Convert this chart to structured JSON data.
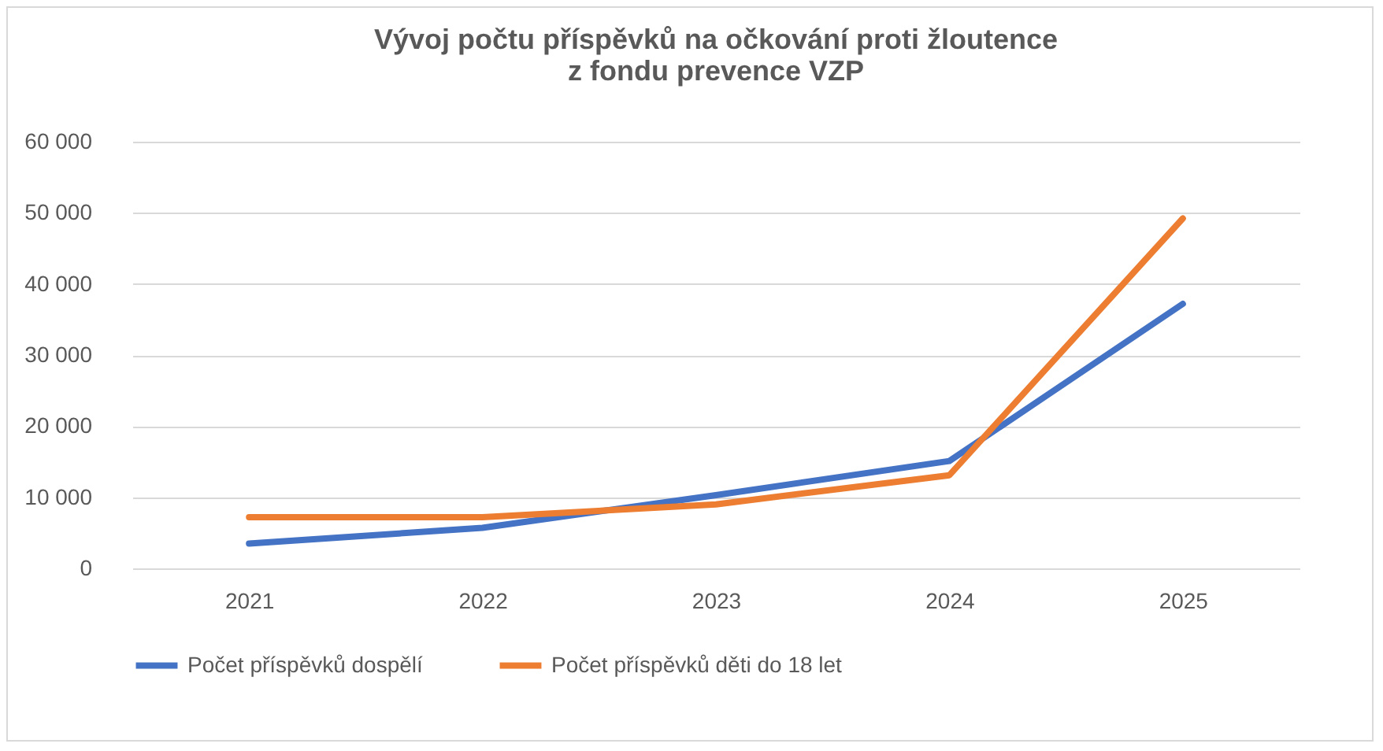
{
  "chart_data": {
    "type": "line",
    "title": "Vývoj počtu příspěvků na očkování proti žloutence\nz fondu prevence VZP",
    "categories": [
      "2021",
      "2022",
      "2023",
      "2024",
      "2025"
    ],
    "series": [
      {
        "name": "Počet příspěvků dospělí",
        "color": "#4472c4",
        "values": [
          3500,
          5700,
          10300,
          15100,
          37200
        ]
      },
      {
        "name": "Počet příspěvků děti do 18 let",
        "color": "#ed7d31",
        "values": [
          7200,
          7200,
          9000,
          13100,
          49200
        ]
      }
    ],
    "ylim": [
      0,
      60000
    ],
    "yticks": [
      {
        "value": 0,
        "label": "0"
      },
      {
        "value": 10000,
        "label": "10 000"
      },
      {
        "value": 20000,
        "label": "20 000"
      },
      {
        "value": 30000,
        "label": "30 000"
      },
      {
        "value": 40000,
        "label": "40 000"
      },
      {
        "value": 50000,
        "label": "50 000"
      },
      {
        "value": 60000,
        "label": "60 000"
      }
    ],
    "grid": "y",
    "legend": "bottom",
    "marker": "none",
    "line_style": "solid"
  }
}
